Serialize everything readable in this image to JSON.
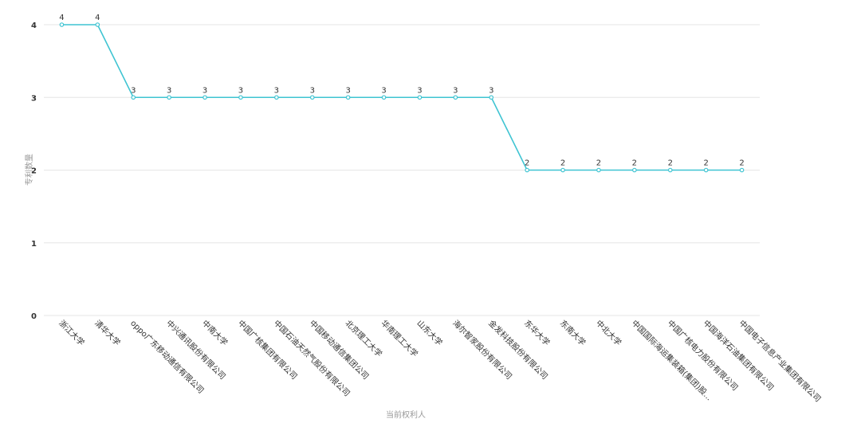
{
  "chart_data": {
    "type": "line",
    "x_label": "当前权利人",
    "y_label": "专利数量",
    "categories": [
      "浙江大学",
      "清华大学",
      "oppo广东移动通信有限公司",
      "中兴通讯股份有限公司",
      "中南大学",
      "中国广核集团有限公司",
      "中国石油天然气股份有限公司",
      "中国移动通信集团公司",
      "北京理工大学",
      "华南理工大学",
      "山东大学",
      "海尔智家股份有限公司",
      "金发科技股份有限公司",
      "东华大学",
      "东南大学",
      "中北大学",
      "中国国际海运集装箱(集团)股...",
      "中国广核电力股份有限公司",
      "中国海洋石油集团有限公司",
      "中国电子信息产业集团有限公司"
    ],
    "series": [
      {
        "color": "#3fc4d2",
        "values": [
          4,
          4,
          3,
          3,
          3,
          3,
          3,
          3,
          3,
          3,
          3,
          3,
          3,
          2,
          2,
          2,
          2,
          2,
          2,
          2
        ]
      }
    ],
    "ylim": [
      0,
      4
    ],
    "yticks": [
      0,
      1,
      2,
      3,
      4
    ],
    "grid": true
  }
}
